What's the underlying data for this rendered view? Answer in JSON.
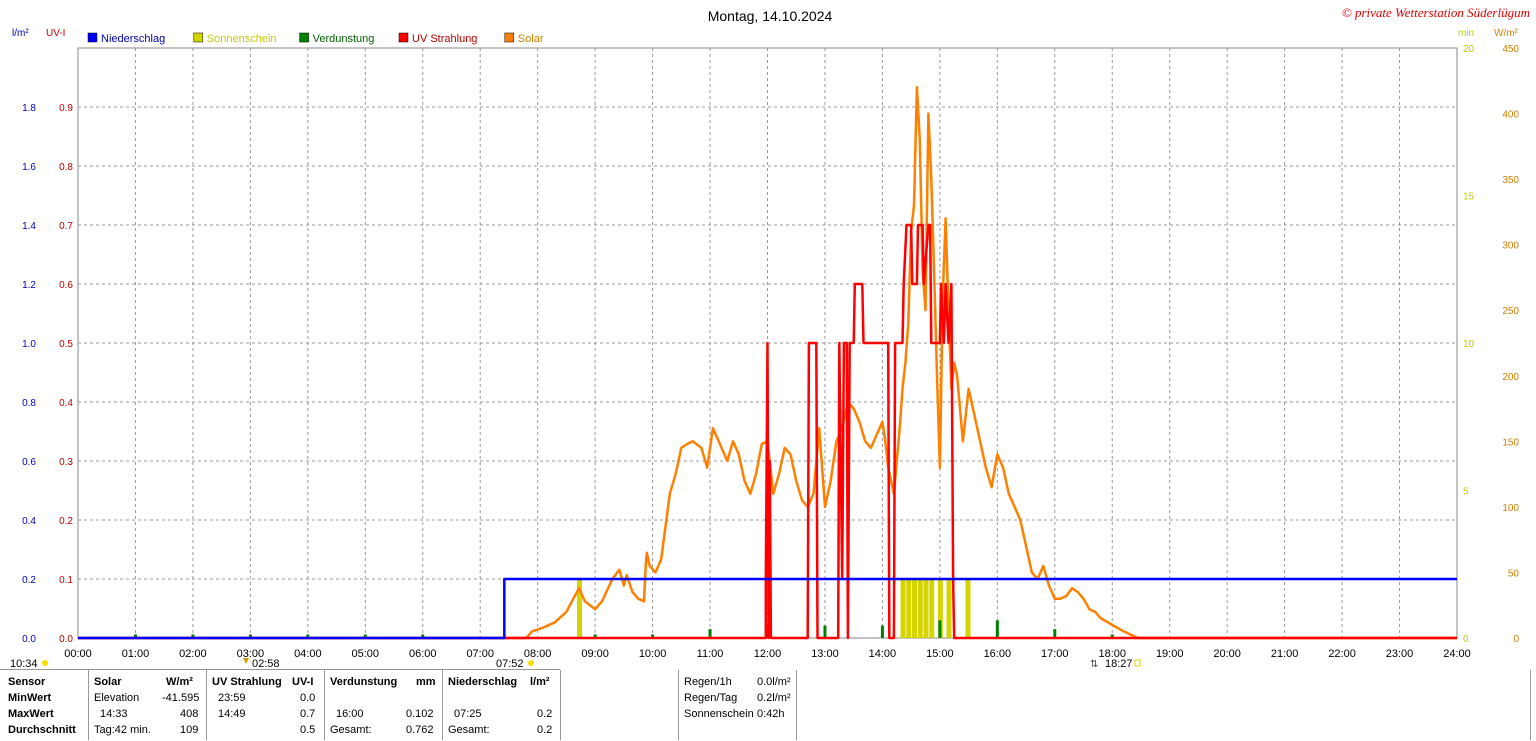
{
  "header": {
    "title": "Montag, 14.10.2024",
    "copyright": "© private Wetterstation Süderlügum"
  },
  "axis_units": {
    "left1": "l/m²",
    "left2": "UV-I",
    "right1": "min",
    "right2": "W/m²"
  },
  "legend": [
    {
      "label": "Niederschlag",
      "color": "#0000ff",
      "text_color": "#0000b0"
    },
    {
      "label": "Sonnenschein",
      "color": "#d4d400",
      "text_color": "#c8c800"
    },
    {
      "label": "Verdunstung",
      "color": "#008000",
      "text_color": "#006000"
    },
    {
      "label": "UV Strahlung",
      "color": "#ff0000",
      "text_color": "#c00000"
    },
    {
      "label": "Solar",
      "color": "#ff8000",
      "text_color": "#d08000"
    }
  ],
  "sun_markers": {
    "moonrise": "10:34",
    "moonset": "02:58",
    "sunrise": "07:52",
    "sunset": "18:27"
  },
  "chart_data": {
    "type": "line",
    "x_range_hours": [
      0,
      24
    ],
    "x_ticks": [
      "00:00",
      "01:00",
      "02:00",
      "03:00",
      "04:00",
      "05:00",
      "06:00",
      "07:00",
      "08:00",
      "09:00",
      "10:00",
      "11:00",
      "12:00",
      "13:00",
      "14:00",
      "15:00",
      "16:00",
      "17:00",
      "18:00",
      "19:00",
      "20:00",
      "21:00",
      "22:00",
      "23:00",
      "24:00"
    ],
    "axes": {
      "rain": {
        "unit": "l/m²",
        "ylim": [
          0,
          2.0
        ],
        "ticks": [
          "0.0",
          "0.2",
          "0.4",
          "0.6",
          "0.8",
          "1.0",
          "1.2",
          "1.4",
          "1.6",
          "1.8"
        ]
      },
      "uv": {
        "unit": "UV-I",
        "ylim": [
          0,
          1.0
        ],
        "ticks": [
          "0.0",
          "0.1",
          "0.2",
          "0.3",
          "0.4",
          "0.5",
          "0.6",
          "0.7",
          "0.8",
          "0.9"
        ]
      },
      "sunshine": {
        "unit": "min",
        "ylim": [
          0,
          20
        ],
        "ticks": [
          "0",
          "5",
          "10",
          "15",
          "20"
        ]
      },
      "solar": {
        "unit": "W/m²",
        "ylim": [
          0,
          450
        ],
        "ticks": [
          "0",
          "50",
          "100",
          "150",
          "200",
          "250",
          "300",
          "350",
          "400",
          "450"
        ]
      }
    },
    "grid": true,
    "series": [
      {
        "name": "Niederschlag",
        "axis": "rain",
        "points": [
          [
            0,
            0
          ],
          [
            7.42,
            0
          ],
          [
            7.42,
            0.2
          ],
          [
            24,
            0.2
          ]
        ]
      },
      {
        "name": "Sonnenschein",
        "axis": "sunshine",
        "bars": [
          [
            8.72,
            1.0
          ],
          [
            14.35,
            1.0
          ],
          [
            14.45,
            1.0
          ],
          [
            14.55,
            1.0
          ],
          [
            14.65,
            1.0
          ],
          [
            14.75,
            1.0
          ],
          [
            14.85,
            1.0
          ],
          [
            15.0,
            1.0
          ],
          [
            15.15,
            1.0
          ],
          [
            15.48,
            1.0
          ]
        ]
      },
      {
        "name": "Verdunstung",
        "axis": "rain",
        "bars": [
          [
            1.0,
            0.02
          ],
          [
            2.0,
            0.02
          ],
          [
            3.0,
            0.02
          ],
          [
            4.0,
            0.02
          ],
          [
            5.0,
            0.02
          ],
          [
            6.0,
            0.02
          ],
          [
            9.0,
            0.02
          ],
          [
            10.0,
            0.02
          ],
          [
            11.0,
            0.05
          ],
          [
            12.0,
            0.07
          ],
          [
            13.0,
            0.07
          ],
          [
            14.0,
            0.07
          ],
          [
            15.0,
            0.1
          ],
          [
            16.0,
            0.1
          ],
          [
            17.0,
            0.05
          ],
          [
            18.0,
            0.02
          ]
        ]
      },
      {
        "name": "UV Strahlung",
        "axis": "uv",
        "points": [
          [
            0,
            0
          ],
          [
            11.97,
            0
          ],
          [
            11.97,
            0.1
          ],
          [
            12.0,
            0.5
          ],
          [
            12.02,
            0
          ],
          [
            12.04,
            0.3
          ],
          [
            12.06,
            0
          ],
          [
            12.7,
            0
          ],
          [
            12.72,
            0.5
          ],
          [
            12.85,
            0.5
          ],
          [
            12.87,
            0
          ],
          [
            13.23,
            0
          ],
          [
            13.25,
            0.5
          ],
          [
            13.3,
            0.1
          ],
          [
            13.33,
            0.5
          ],
          [
            13.38,
            0.5
          ],
          [
            13.4,
            0
          ],
          [
            13.43,
            0.5
          ],
          [
            13.5,
            0.5
          ],
          [
            13.52,
            0.6
          ],
          [
            13.65,
            0.6
          ],
          [
            13.67,
            0.5
          ],
          [
            14.1,
            0.5
          ],
          [
            14.12,
            0
          ],
          [
            14.2,
            0
          ],
          [
            14.22,
            0.5
          ],
          [
            14.35,
            0.5
          ],
          [
            14.37,
            0.6
          ],
          [
            14.42,
            0.7
          ],
          [
            14.5,
            0.7
          ],
          [
            14.52,
            0.6
          ],
          [
            14.6,
            0.6
          ],
          [
            14.62,
            0.7
          ],
          [
            14.7,
            0.7
          ],
          [
            14.72,
            0.6
          ],
          [
            14.8,
            0.7
          ],
          [
            14.83,
            0.7
          ],
          [
            14.85,
            0.5
          ],
          [
            15.0,
            0.5
          ],
          [
            15.02,
            0.6
          ],
          [
            15.07,
            0.5
          ],
          [
            15.1,
            0.6
          ],
          [
            15.15,
            0.5
          ],
          [
            15.2,
            0.6
          ],
          [
            15.23,
            0.1
          ],
          [
            15.25,
            0
          ],
          [
            24,
            0
          ]
        ]
      },
      {
        "name": "Solar",
        "axis": "solar",
        "points": [
          [
            0,
            0
          ],
          [
            7.8,
            0
          ],
          [
            7.9,
            5
          ],
          [
            8.1,
            8
          ],
          [
            8.3,
            12
          ],
          [
            8.5,
            20
          ],
          [
            8.62,
            30
          ],
          [
            8.72,
            38
          ],
          [
            8.82,
            28
          ],
          [
            9.0,
            22
          ],
          [
            9.12,
            28
          ],
          [
            9.3,
            45
          ],
          [
            9.42,
            52
          ],
          [
            9.5,
            40
          ],
          [
            9.55,
            48
          ],
          [
            9.65,
            35
          ],
          [
            9.75,
            30
          ],
          [
            9.85,
            28
          ],
          [
            9.88,
            55
          ],
          [
            9.9,
            65
          ],
          [
            9.95,
            55
          ],
          [
            10.05,
            50
          ],
          [
            10.15,
            60
          ],
          [
            10.3,
            110
          ],
          [
            10.4,
            125
          ],
          [
            10.5,
            145
          ],
          [
            10.6,
            148
          ],
          [
            10.7,
            150
          ],
          [
            10.85,
            145
          ],
          [
            10.95,
            130
          ],
          [
            11.05,
            160
          ],
          [
            11.15,
            150
          ],
          [
            11.3,
            135
          ],
          [
            11.4,
            150
          ],
          [
            11.5,
            140
          ],
          [
            11.6,
            120
          ],
          [
            11.7,
            110
          ],
          [
            11.8,
            125
          ],
          [
            11.9,
            148
          ],
          [
            12.0,
            150
          ],
          [
            12.05,
            130
          ],
          [
            12.1,
            110
          ],
          [
            12.2,
            125
          ],
          [
            12.3,
            145
          ],
          [
            12.4,
            140
          ],
          [
            12.5,
            120
          ],
          [
            12.6,
            105
          ],
          [
            12.7,
            100
          ],
          [
            12.8,
            110
          ],
          [
            12.9,
            160
          ],
          [
            13.0,
            100
          ],
          [
            13.1,
            120
          ],
          [
            13.2,
            150
          ],
          [
            13.3,
            160
          ],
          [
            13.4,
            180
          ],
          [
            13.5,
            175
          ],
          [
            13.6,
            165
          ],
          [
            13.7,
            150
          ],
          [
            13.8,
            145
          ],
          [
            13.9,
            155
          ],
          [
            14.0,
            165
          ],
          [
            14.05,
            150
          ],
          [
            14.1,
            130
          ],
          [
            14.2,
            110
          ],
          [
            14.3,
            160
          ],
          [
            14.35,
            190
          ],
          [
            14.4,
            210
          ],
          [
            14.45,
            240
          ],
          [
            14.5,
            310
          ],
          [
            14.55,
            330
          ],
          [
            14.6,
            420
          ],
          [
            14.65,
            380
          ],
          [
            14.7,
            280
          ],
          [
            14.75,
            250
          ],
          [
            14.8,
            400
          ],
          [
            14.85,
            350
          ],
          [
            14.9,
            280
          ],
          [
            14.95,
            200
          ],
          [
            15.0,
            130
          ],
          [
            15.05,
            260
          ],
          [
            15.1,
            320
          ],
          [
            15.15,
            250
          ],
          [
            15.2,
            190
          ],
          [
            15.25,
            210
          ],
          [
            15.3,
            200
          ],
          [
            15.4,
            150
          ],
          [
            15.5,
            190
          ],
          [
            15.6,
            170
          ],
          [
            15.7,
            150
          ],
          [
            15.8,
            130
          ],
          [
            15.9,
            115
          ],
          [
            16.0,
            140
          ],
          [
            16.1,
            130
          ],
          [
            16.2,
            110
          ],
          [
            16.3,
            100
          ],
          [
            16.4,
            90
          ],
          [
            16.5,
            70
          ],
          [
            16.6,
            50
          ],
          [
            16.7,
            45
          ],
          [
            16.8,
            55
          ],
          [
            16.9,
            40
          ],
          [
            17.0,
            30
          ],
          [
            17.1,
            30
          ],
          [
            17.2,
            32
          ],
          [
            17.3,
            38
          ],
          [
            17.4,
            35
          ],
          [
            17.5,
            30
          ],
          [
            17.6,
            22
          ],
          [
            17.7,
            20
          ],
          [
            17.8,
            15
          ],
          [
            18.0,
            10
          ],
          [
            18.2,
            5
          ],
          [
            18.4,
            1
          ],
          [
            18.45,
            0
          ],
          [
            24,
            0
          ]
        ]
      }
    ]
  },
  "stats": {
    "headers": {
      "sensor": "Sensor",
      "min": "MinWert",
      "max": "MaxWert",
      "avg": "Durchschnitt"
    },
    "solar": {
      "title": "Solar",
      "unit": "W/m²",
      "min_time": "Elevation",
      "min_val": "-41.595",
      "max_time": "14:33",
      "max_val": "408",
      "avg_label": "Tag:42 min.",
      "avg_val": "109"
    },
    "uv": {
      "title": "UV Strahlung",
      "unit": "UV-I",
      "min_time": "23:59",
      "min_val": "0.0",
      "max_time": "14:49",
      "max_val": "0.7",
      "avg_val": "0.5"
    },
    "evap": {
      "title": "Verdunstung",
      "unit": "mm",
      "max_time": "16:00",
      "max_val": "0.102",
      "avg_label": "Gesamt:",
      "avg_val": "0.762"
    },
    "rain": {
      "title": "Niederschlag",
      "unit": "l/m²",
      "max_time": "07:25",
      "max_val": "0.2",
      "avg_label": "Gesamt:",
      "avg_val": "0.2"
    },
    "summary": [
      {
        "label": "Regen/1h",
        "value": "0.0l/m²"
      },
      {
        "label": "Regen/Tag",
        "value": "0.2l/m²"
      },
      {
        "label": "Sonnenschein",
        "value": "0:42h"
      }
    ]
  }
}
